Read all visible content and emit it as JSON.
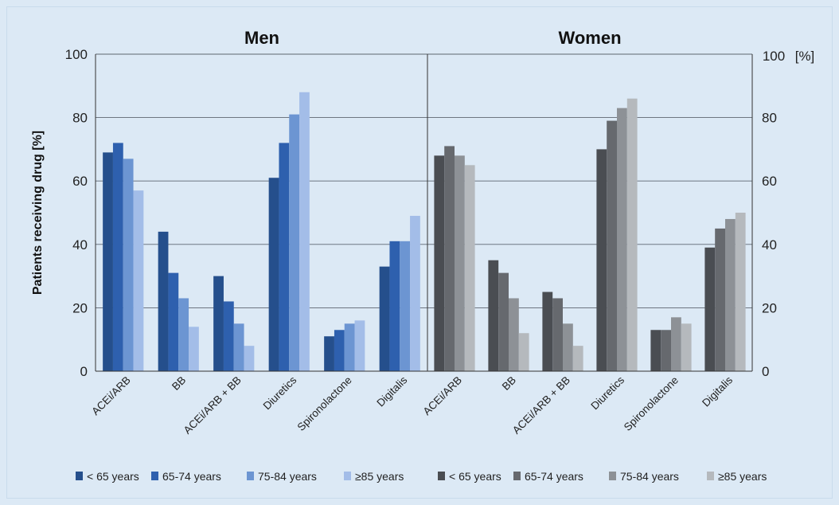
{
  "chart_data": [
    {
      "type": "bar",
      "title": "Men",
      "ylabel": "Patients receiving drug [%]",
      "ylim": [
        0,
        100
      ],
      "yticks": [
        "0",
        "20",
        "40",
        "60",
        "80",
        "100"
      ],
      "categories": [
        "ACEi/ARB",
        "BB",
        "ACEi/ARB + BB",
        "Diuretics",
        "Spironolactone",
        "Digitalis"
      ],
      "series": [
        {
          "name": "< 65 years",
          "color": "#254f8c",
          "values": [
            69,
            44,
            30,
            61,
            11,
            33
          ]
        },
        {
          "name": "65-74 years",
          "color": "#2e60ae",
          "values": [
            72,
            31,
            22,
            72,
            13,
            41
          ]
        },
        {
          "name": "75-84 years",
          "color": "#6c95d2",
          "values": [
            67,
            23,
            15,
            81,
            15,
            41
          ]
        },
        {
          "name": "≥85 years",
          "color": "#a3bde8",
          "values": [
            57,
            14,
            8,
            88,
            16,
            49
          ]
        }
      ],
      "grid": true
    },
    {
      "type": "bar",
      "title": "Women",
      "ylabel": "[%]",
      "ylim": [
        0,
        100
      ],
      "yticks": [
        "0",
        "20",
        "40",
        "60",
        "80",
        "100"
      ],
      "categories": [
        "ACEi/ARB",
        "BB",
        "ACEi/ARB + BB",
        "Diuretics",
        "Spironolactone",
        "Digitalis"
      ],
      "series": [
        {
          "name": "< 65 years",
          "color": "#4a4d52",
          "values": [
            68,
            35,
            25,
            70,
            13,
            39
          ]
        },
        {
          "name": "65-74 years",
          "color": "#66696e",
          "values": [
            71,
            31,
            23,
            79,
            13,
            45
          ]
        },
        {
          "name": "75-84 years",
          "color": "#8d9196",
          "values": [
            68,
            23,
            15,
            83,
            17,
            48
          ]
        },
        {
          "name": "≥85 years",
          "color": "#b5b9bd",
          "values": [
            65,
            12,
            8,
            86,
            15,
            50
          ]
        }
      ],
      "grid": true
    }
  ]
}
